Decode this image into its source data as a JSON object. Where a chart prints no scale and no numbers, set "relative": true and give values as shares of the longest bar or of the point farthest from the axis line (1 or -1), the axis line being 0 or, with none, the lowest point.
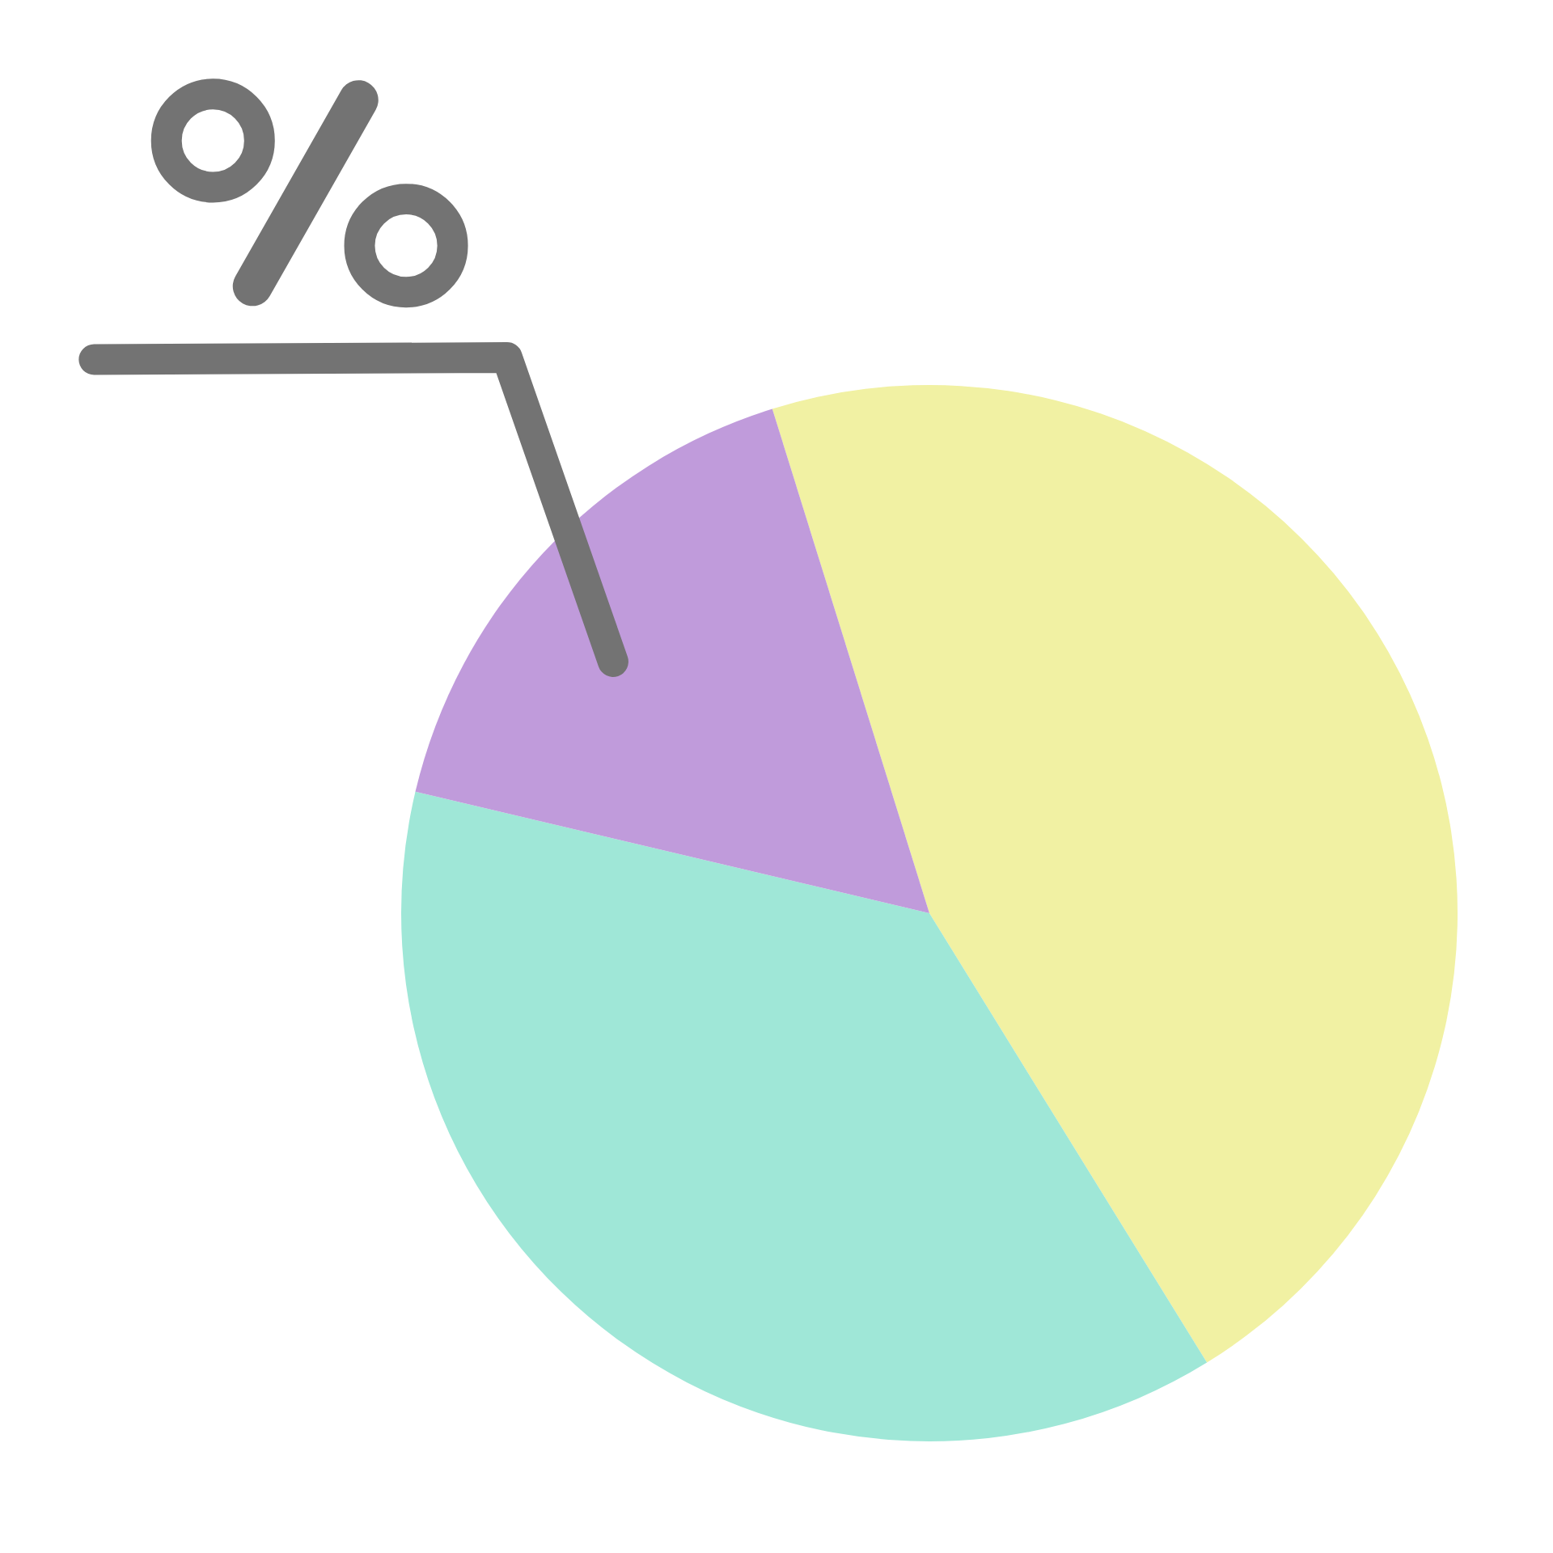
{
  "chart_data": {
    "type": "pie",
    "relative": true,
    "categories": [
      null,
      null,
      null
    ],
    "values": [
      46,
      37.5,
      16.5
    ],
    "colors": [
      "#f1f1a3",
      "#9fe7d7",
      "#c09bdb"
    ]
  }
}
